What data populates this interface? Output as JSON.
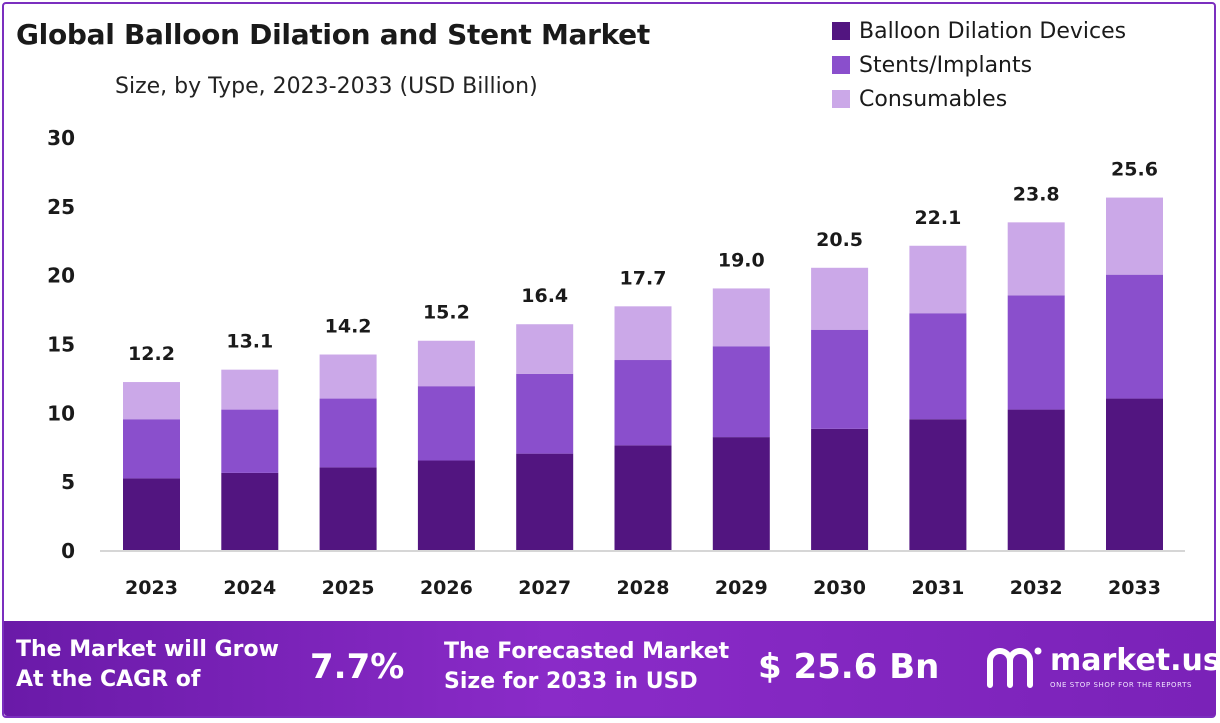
{
  "header": {
    "title": "Global Balloon Dilation and Stent Market",
    "subtitle": "Size, by Type, 2023-2033 (USD Billion)"
  },
  "colors": {
    "balloon": "#521580",
    "stents": "#8a4fcc",
    "consumables": "#cba8e8",
    "axis": "#c8c8c8",
    "frame": "#7b2fbf"
  },
  "chart_data": {
    "type": "bar",
    "stacked": true,
    "categories": [
      "2023",
      "2024",
      "2025",
      "2026",
      "2027",
      "2028",
      "2029",
      "2030",
      "2031",
      "2032",
      "2033"
    ],
    "series": [
      {
        "name": "Balloon Dilation Devices",
        "values": [
          5.2,
          5.6,
          6.0,
          6.5,
          7.0,
          7.6,
          8.2,
          8.8,
          9.5,
          10.2,
          11.0
        ]
      },
      {
        "name": "Stents/Implants",
        "values": [
          4.3,
          4.6,
          5.0,
          5.4,
          5.8,
          6.2,
          6.6,
          7.2,
          7.7,
          8.3,
          9.0
        ]
      },
      {
        "name": "Consumables",
        "values": [
          2.7,
          2.9,
          3.2,
          3.3,
          3.6,
          3.9,
          4.2,
          4.5,
          4.9,
          5.3,
          5.6
        ]
      }
    ],
    "totals": [
      "12.2",
      "13.1",
      "14.2",
      "15.2",
      "16.4",
      "17.7",
      "19.0",
      "20.5",
      "22.1",
      "23.8",
      "25.6"
    ],
    "ylim": [
      0,
      30
    ],
    "yticks": [
      0,
      5,
      10,
      15,
      20,
      25,
      30
    ],
    "grid": false,
    "legend": "top-right"
  },
  "footer": {
    "cagr_label_line1": "The Market will Grow",
    "cagr_label_line2": "At the CAGR of",
    "cagr_value": "7.7%",
    "forecast_label_line1": "The Forecasted Market",
    "forecast_label_line2": "Size for 2033 in USD",
    "forecast_value": "$ 25.6 Bn",
    "brand_name": "market.us",
    "brand_tagline": "ONE STOP SHOP FOR THE REPORTS"
  }
}
